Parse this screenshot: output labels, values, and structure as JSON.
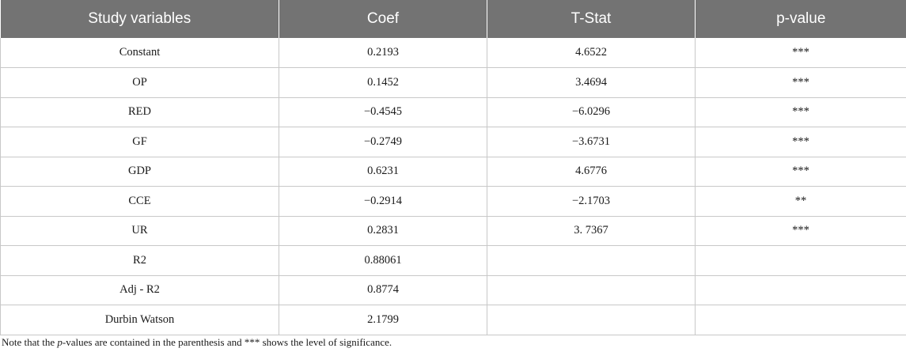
{
  "table": {
    "headers": [
      "Study variables",
      "Coef",
      "T-Stat",
      "p-value"
    ],
    "rows": [
      [
        "Constant",
        "0.2193",
        "4.6522",
        "***"
      ],
      [
        "OP",
        "0.1452",
        "3.4694",
        "***"
      ],
      [
        "RED",
        "−0.4545",
        "−6.0296",
        "***"
      ],
      [
        "GF",
        "−0.2749",
        "−3.6731",
        "***"
      ],
      [
        "GDP",
        "0.6231",
        "4.6776",
        "***"
      ],
      [
        "CCE",
        "−0.2914",
        "−2.1703",
        "**"
      ],
      [
        "UR",
        "0.2831",
        "3. 7367",
        "***"
      ],
      [
        "R2",
        "0.88061",
        "",
        ""
      ],
      [
        "Adj - R2",
        "0.8774",
        "",
        ""
      ],
      [
        "Durbin Watson",
        "2.1799",
        "",
        ""
      ]
    ]
  },
  "note": {
    "prefix": "Note that the ",
    "italic": "p",
    "suffix": "-values are contained in the parenthesis and *** shows the level of significance."
  },
  "colors": {
    "header_bg": "#737373",
    "header_text": "#ffffff",
    "grid": "#c8c8c8"
  }
}
